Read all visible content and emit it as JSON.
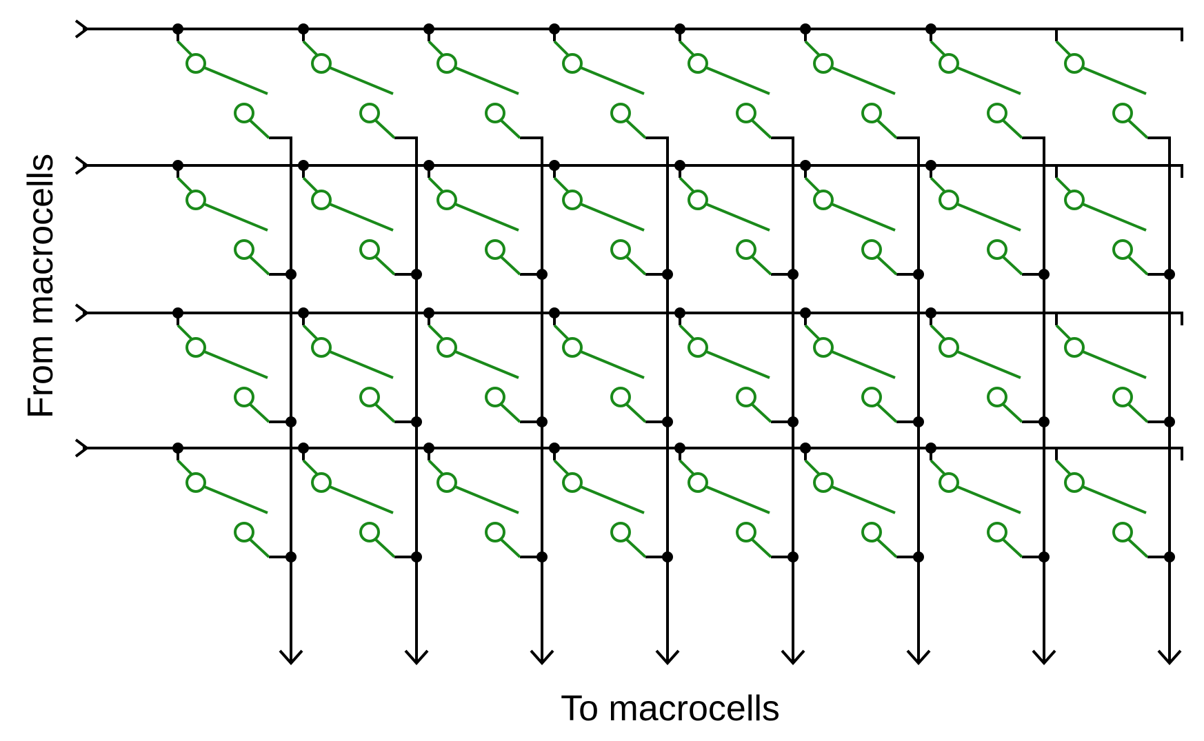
{
  "labels": {
    "input_side": "From macrocells",
    "output_side": "To macrocells"
  },
  "grid": {
    "input_rows": 4,
    "output_columns": 8
  },
  "colors": {
    "wire": "#000000",
    "switch": "#1a8a1a",
    "background": "#ffffff"
  },
  "symbols": {
    "junction": "dot",
    "input_terminal": "chevron-right-icon",
    "output_terminal": "arrow-down-icon",
    "crosspoint": "programmable-switch-icon"
  }
}
